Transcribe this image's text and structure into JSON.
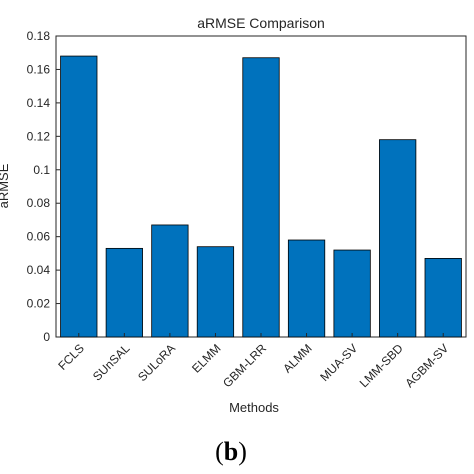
{
  "chart_data": {
    "type": "bar",
    "title": "aRMSE Comparison",
    "xlabel": "Methods",
    "ylabel": "aRMSE",
    "categories": [
      "FCLS",
      "SUnSAL",
      "SULoRA",
      "ELMM",
      "GBM-LRR",
      "ALMM",
      "MUA-SV",
      "LMM-SBD",
      "AGBM-SV"
    ],
    "values": [
      0.168,
      0.053,
      0.067,
      0.054,
      0.167,
      0.058,
      0.052,
      0.118,
      0.047
    ],
    "ylim": [
      0,
      0.18
    ],
    "yticks": [
      "0",
      "0.02",
      "0.04",
      "0.06",
      "0.08",
      "0.1",
      "0.12",
      "0.14",
      "0.16",
      "0.18"
    ],
    "grid": false,
    "bar_color": "#0072BD"
  },
  "panel_label": {
    "open": "(",
    "letter": "b",
    "close": ")"
  }
}
